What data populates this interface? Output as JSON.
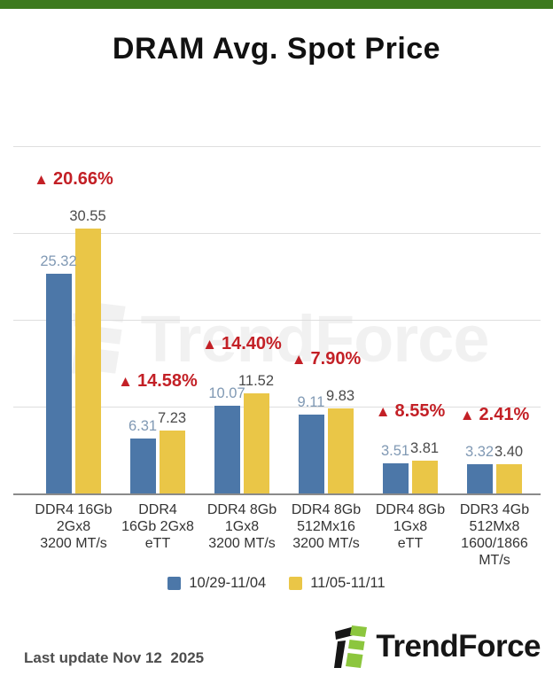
{
  "header": {
    "title": "DRAM Avg. Spot Price"
  },
  "watermark": {
    "text": "TrendForce"
  },
  "footer": {
    "last_update": "Last update Nov 12  2025",
    "brand": "TrendForce"
  },
  "colors": {
    "accent_green": "#3D7A1E",
    "bar_blue": "#4C77A8",
    "bar_yellow": "#EAC647",
    "change_red": "#C32026",
    "logo_green": "#8CC63E",
    "blue_value_label": "#8099B4",
    "dark_value_label": "#4a4a4a"
  },
  "chart_data": {
    "type": "bar",
    "title": "DRAM Avg. Spot Price",
    "categories": [
      {
        "lines": [
          "DDR4 16Gb",
          "2Gx8",
          "3200 MT/s"
        ]
      },
      {
        "lines": [
          "DDR4",
          "16Gb 2Gx8",
          "eTT"
        ]
      },
      {
        "lines": [
          "DDR4 8Gb",
          "1Gx8",
          "3200 MT/s"
        ]
      },
      {
        "lines": [
          "DDR4 8Gb",
          "512Mx16",
          "3200 MT/s"
        ]
      },
      {
        "lines": [
          "DDR4 8Gb",
          "1Gx8",
          "eTT"
        ]
      },
      {
        "lines": [
          "DDR3 4Gb",
          "512Mx8",
          "1600/1866",
          "MT/s"
        ]
      }
    ],
    "series": [
      {
        "name": "10/29-11/04",
        "color": "#4C77A8",
        "values": [
          25.32,
          6.31,
          10.07,
          9.11,
          3.51,
          3.32
        ]
      },
      {
        "name": "11/05-11/11",
        "color": "#EAC647",
        "values": [
          30.55,
          7.23,
          11.52,
          9.83,
          3.81,
          3.4
        ]
      }
    ],
    "change_labels": [
      {
        "direction": "up",
        "text": "20.66%"
      },
      {
        "direction": "up",
        "text": "14.58%"
      },
      {
        "direction": "up",
        "text": "14.40%"
      },
      {
        "direction": "up",
        "text": "7.90%"
      },
      {
        "direction": "up",
        "text": "8.55%"
      },
      {
        "direction": "up",
        "text": "2.41%"
      }
    ],
    "up_symbol": "▲",
    "ylim": [
      0,
      40
    ],
    "gridline_values": [
      10,
      20,
      30,
      40
    ],
    "grid": true,
    "legend_position": "bottom"
  }
}
